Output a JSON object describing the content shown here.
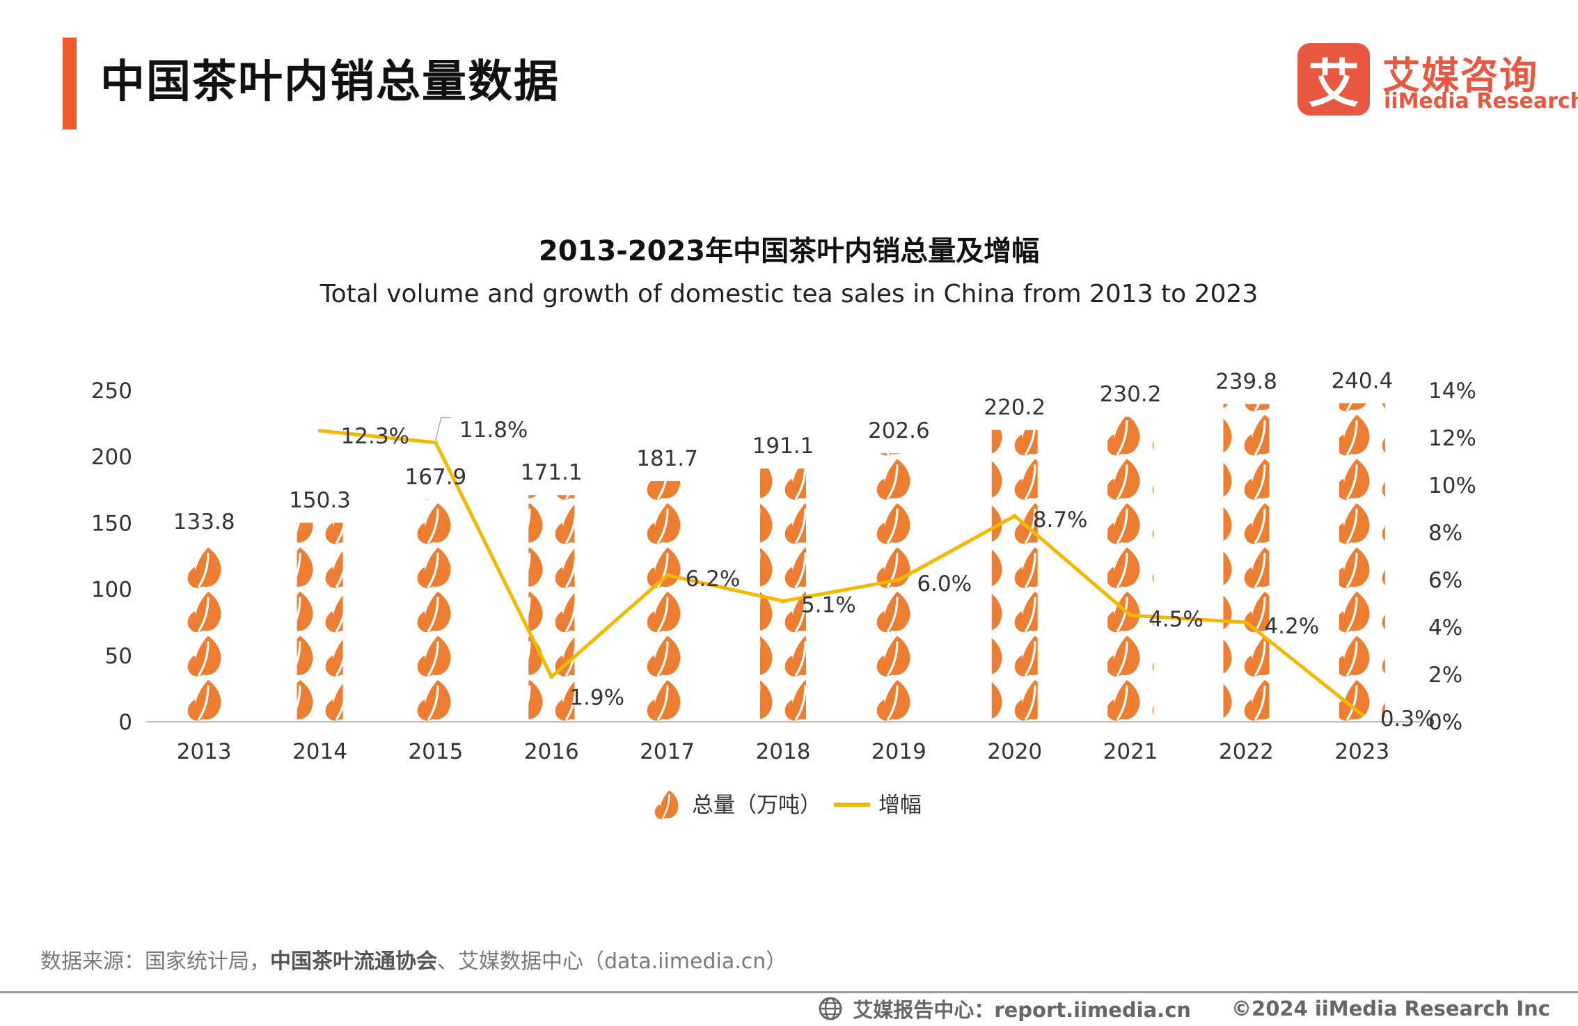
{
  "header": {
    "title": "中国茶叶内销总量数据"
  },
  "logo": {
    "mark": "艾",
    "cn": "艾媒咨询",
    "en": "iiMedia Research"
  },
  "chart_data": {
    "type": "bar",
    "title": "2013-2023年中国茶叶内销总量及增幅",
    "subtitle": "Total volume and growth of domestic tea sales in China from 2013 to 2023",
    "categories": [
      "2013",
      "2014",
      "2015",
      "2016",
      "2017",
      "2018",
      "2019",
      "2020",
      "2021",
      "2022",
      "2023"
    ],
    "series": [
      {
        "name": "总量（万吨）",
        "type": "pictorial-bar",
        "axis": "left",
        "values": [
          133.8,
          150.3,
          167.9,
          171.1,
          181.7,
          191.1,
          202.6,
          220.2,
          230.2,
          239.8,
          240.4
        ],
        "labels": [
          "133.8",
          "150.3",
          "167.9",
          "171.1",
          "181.7",
          "191.1",
          "202.6",
          "220.2",
          "230.2",
          "239.8",
          "240.4"
        ],
        "color": "#ed7d31"
      },
      {
        "name": "增幅",
        "type": "line",
        "axis": "right",
        "values": [
          null,
          12.3,
          11.8,
          1.9,
          6.2,
          5.1,
          6.0,
          8.7,
          4.5,
          4.2,
          0.3
        ],
        "labels": [
          "",
          "12.3%",
          "11.8%",
          "1.9%",
          "6.2%",
          "5.1%",
          "6.0%",
          "8.7%",
          "4.5%",
          "4.2%",
          "0.3%"
        ],
        "color": "#f4b800"
      }
    ],
    "y_left": {
      "min": 0,
      "max": 250,
      "ticks": [
        "0",
        "50",
        "100",
        "150",
        "200",
        "250"
      ]
    },
    "y_right": {
      "min": 0,
      "max": 14,
      "ticks": [
        "0%",
        "2%",
        "4%",
        "6%",
        "8%",
        "10%",
        "12%",
        "14%"
      ]
    },
    "legend_position": "bottom-center",
    "grid": false
  },
  "source": {
    "prefix": "数据来源：国家统计局，",
    "bold": "中国茶叶流通协会",
    "suffix": "、艾媒数据中心（data.iimedia.cn）"
  },
  "footer": {
    "report": "艾媒报告中心：report.iimedia.cn",
    "copyright": "©2024  iiMedia Research  Inc"
  }
}
